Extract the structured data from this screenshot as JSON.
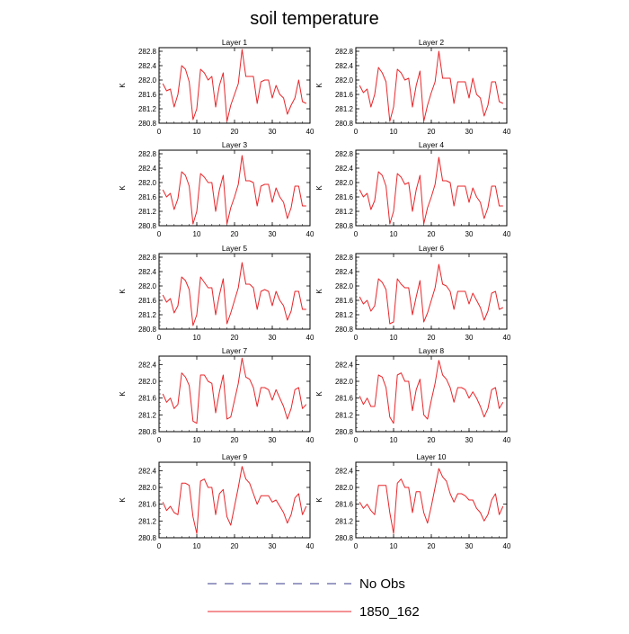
{
  "title": "soil temperature",
  "legend": [
    {
      "name": "No Obs",
      "color": "#3a3a8c",
      "dash": true
    },
    {
      "name": "1850_162",
      "color": "#e8262a",
      "dash": false
    }
  ],
  "chart_data": {
    "type": "line",
    "title": "soil temperature",
    "ylabel": "K",
    "xlim": [
      0,
      40
    ],
    "xticks": [
      0,
      10,
      20,
      30,
      40
    ],
    "x": [
      1,
      2,
      3,
      4,
      5,
      6,
      7,
      8,
      9,
      10,
      11,
      12,
      13,
      14,
      15,
      16,
      17,
      18,
      19,
      20,
      21,
      22,
      23,
      24,
      25,
      26,
      27,
      28,
      29,
      30,
      31,
      32,
      33,
      34,
      35,
      36,
      37,
      38,
      39
    ],
    "series_color": "#e8262a",
    "panels": [
      {
        "name": "Layer 1",
        "ylim": [
          280.8,
          282.9
        ],
        "yticks": [
          280.8,
          281.2,
          281.6,
          282.0,
          282.4,
          282.8
        ],
        "values": [
          281.9,
          281.7,
          281.75,
          281.25,
          281.6,
          282.4,
          282.3,
          281.95,
          280.9,
          281.2,
          282.3,
          282.2,
          282.0,
          282.1,
          281.25,
          281.85,
          282.2,
          280.85,
          281.3,
          281.6,
          281.9,
          282.85,
          282.1,
          282.1,
          282.1,
          281.35,
          281.95,
          282.0,
          282.0,
          281.5,
          281.85,
          281.6,
          281.5,
          281.05,
          281.3,
          281.5,
          282.0,
          281.4,
          281.35
        ]
      },
      {
        "name": "Layer 2",
        "ylim": [
          280.8,
          282.9
        ],
        "yticks": [
          280.8,
          281.2,
          281.6,
          282.0,
          282.4,
          282.8
        ],
        "values": [
          281.85,
          281.65,
          281.75,
          281.25,
          281.6,
          282.35,
          282.2,
          281.95,
          280.85,
          281.25,
          282.3,
          282.2,
          282.0,
          282.05,
          281.25,
          281.85,
          282.25,
          280.85,
          281.3,
          281.65,
          281.95,
          282.8,
          282.05,
          282.05,
          282.05,
          281.35,
          281.95,
          281.95,
          281.95,
          281.5,
          282.05,
          281.6,
          281.5,
          281.0,
          281.3,
          281.95,
          281.95,
          281.4,
          281.35
        ]
      },
      {
        "name": "Layer 3",
        "ylim": [
          280.8,
          282.9
        ],
        "yticks": [
          280.8,
          281.2,
          281.6,
          282.0,
          282.4,
          282.8
        ],
        "values": [
          281.8,
          281.6,
          281.7,
          281.25,
          281.55,
          282.3,
          282.2,
          281.9,
          280.85,
          281.2,
          282.25,
          282.15,
          282.0,
          282.0,
          281.2,
          281.8,
          282.2,
          280.85,
          281.3,
          281.6,
          281.95,
          282.75,
          282.05,
          282.05,
          282.0,
          281.35,
          281.9,
          281.95,
          281.95,
          281.45,
          281.85,
          281.6,
          281.45,
          281.0,
          281.3,
          281.9,
          281.9,
          281.35,
          281.35
        ]
      },
      {
        "name": "Layer 4",
        "ylim": [
          280.8,
          282.9
        ],
        "yticks": [
          280.8,
          281.2,
          281.6,
          282.0,
          282.4,
          282.8
        ],
        "values": [
          281.8,
          281.6,
          281.7,
          281.25,
          281.5,
          282.3,
          282.2,
          281.9,
          280.85,
          281.2,
          282.25,
          282.15,
          281.95,
          282.0,
          281.2,
          281.8,
          282.2,
          280.85,
          281.3,
          281.6,
          281.95,
          282.7,
          282.05,
          282.05,
          282.0,
          281.35,
          281.9,
          281.9,
          281.9,
          281.45,
          281.85,
          281.6,
          281.45,
          281.0,
          281.3,
          281.9,
          281.9,
          281.35,
          281.35
        ]
      },
      {
        "name": "Layer 5",
        "ylim": [
          280.8,
          282.9
        ],
        "yticks": [
          280.8,
          281.2,
          281.6,
          282.0,
          282.4,
          282.8
        ],
        "values": [
          281.75,
          281.55,
          281.65,
          281.25,
          281.45,
          282.25,
          282.15,
          281.9,
          280.9,
          281.2,
          282.25,
          282.1,
          281.95,
          281.95,
          281.2,
          281.75,
          282.2,
          280.95,
          281.25,
          281.6,
          281.95,
          282.65,
          282.05,
          282.05,
          281.95,
          281.35,
          281.85,
          281.9,
          281.85,
          281.45,
          281.85,
          281.6,
          281.45,
          281.05,
          281.3,
          281.85,
          281.85,
          281.35,
          281.35
        ]
      },
      {
        "name": "Layer 6",
        "ylim": [
          280.8,
          282.9
        ],
        "yticks": [
          280.8,
          281.2,
          281.6,
          282.0,
          282.4,
          282.8
        ],
        "values": [
          281.7,
          281.5,
          281.6,
          281.3,
          281.45,
          282.2,
          282.1,
          281.9,
          280.95,
          281.0,
          282.2,
          282.05,
          281.95,
          281.95,
          281.2,
          281.7,
          282.15,
          281.0,
          281.25,
          281.6,
          281.95,
          282.6,
          282.05,
          282.0,
          281.85,
          281.35,
          281.85,
          281.85,
          281.85,
          281.5,
          281.8,
          281.6,
          281.4,
          281.05,
          281.3,
          281.8,
          281.85,
          281.35,
          281.4
        ]
      },
      {
        "name": "Layer 7",
        "ylim": [
          280.8,
          282.6
        ],
        "yticks": [
          280.8,
          281.2,
          281.6,
          282.0,
          282.4
        ],
        "values": [
          281.7,
          281.5,
          281.6,
          281.35,
          281.45,
          282.2,
          282.1,
          281.9,
          281.05,
          281.0,
          282.15,
          282.15,
          282.0,
          281.95,
          281.25,
          281.75,
          282.15,
          281.1,
          281.15,
          281.55,
          281.95,
          282.55,
          282.1,
          282.05,
          281.85,
          281.4,
          281.85,
          281.85,
          281.8,
          281.55,
          281.8,
          281.6,
          281.4,
          281.1,
          281.35,
          281.8,
          281.85,
          281.35,
          281.45
        ]
      },
      {
        "name": "Layer 8",
        "ylim": [
          280.8,
          282.6
        ],
        "yticks": [
          280.8,
          281.2,
          281.6,
          282.0,
          282.4
        ],
        "values": [
          281.65,
          281.45,
          281.6,
          281.4,
          281.4,
          282.15,
          282.1,
          281.85,
          281.15,
          281.0,
          282.15,
          282.2,
          282.0,
          282.0,
          281.3,
          281.8,
          282.05,
          281.2,
          281.1,
          281.55,
          281.95,
          282.5,
          282.15,
          282.05,
          281.85,
          281.5,
          281.85,
          281.85,
          281.8,
          281.6,
          281.75,
          281.6,
          281.4,
          281.15,
          281.35,
          281.8,
          281.85,
          281.35,
          281.5
        ]
      },
      {
        "name": "Layer 9",
        "ylim": [
          280.8,
          282.6
        ],
        "yticks": [
          280.8,
          281.2,
          281.6,
          282.0,
          282.4
        ],
        "values": [
          281.65,
          281.45,
          281.55,
          281.4,
          281.35,
          282.1,
          282.1,
          282.05,
          281.3,
          280.9,
          282.15,
          282.2,
          282.0,
          282.0,
          281.35,
          281.85,
          281.95,
          281.3,
          281.1,
          281.55,
          282.0,
          282.5,
          282.2,
          282.1,
          281.85,
          281.6,
          281.8,
          281.8,
          281.8,
          281.65,
          281.7,
          281.55,
          281.4,
          281.15,
          281.35,
          281.75,
          281.85,
          281.35,
          281.55
        ]
      },
      {
        "name": "Layer 10",
        "ylim": [
          280.8,
          282.6
        ],
        "yticks": [
          280.8,
          281.2,
          281.6,
          282.0,
          282.4
        ],
        "values": [
          281.65,
          281.5,
          281.6,
          281.45,
          281.35,
          282.05,
          282.05,
          282.05,
          281.4,
          280.9,
          282.1,
          282.2,
          282.0,
          282.0,
          281.4,
          281.9,
          281.9,
          281.4,
          281.15,
          281.55,
          282.0,
          282.45,
          282.25,
          282.15,
          281.85,
          281.65,
          281.85,
          281.85,
          281.8,
          281.7,
          281.7,
          281.5,
          281.4,
          281.2,
          281.35,
          281.7,
          281.85,
          281.35,
          281.55
        ]
      }
    ]
  }
}
